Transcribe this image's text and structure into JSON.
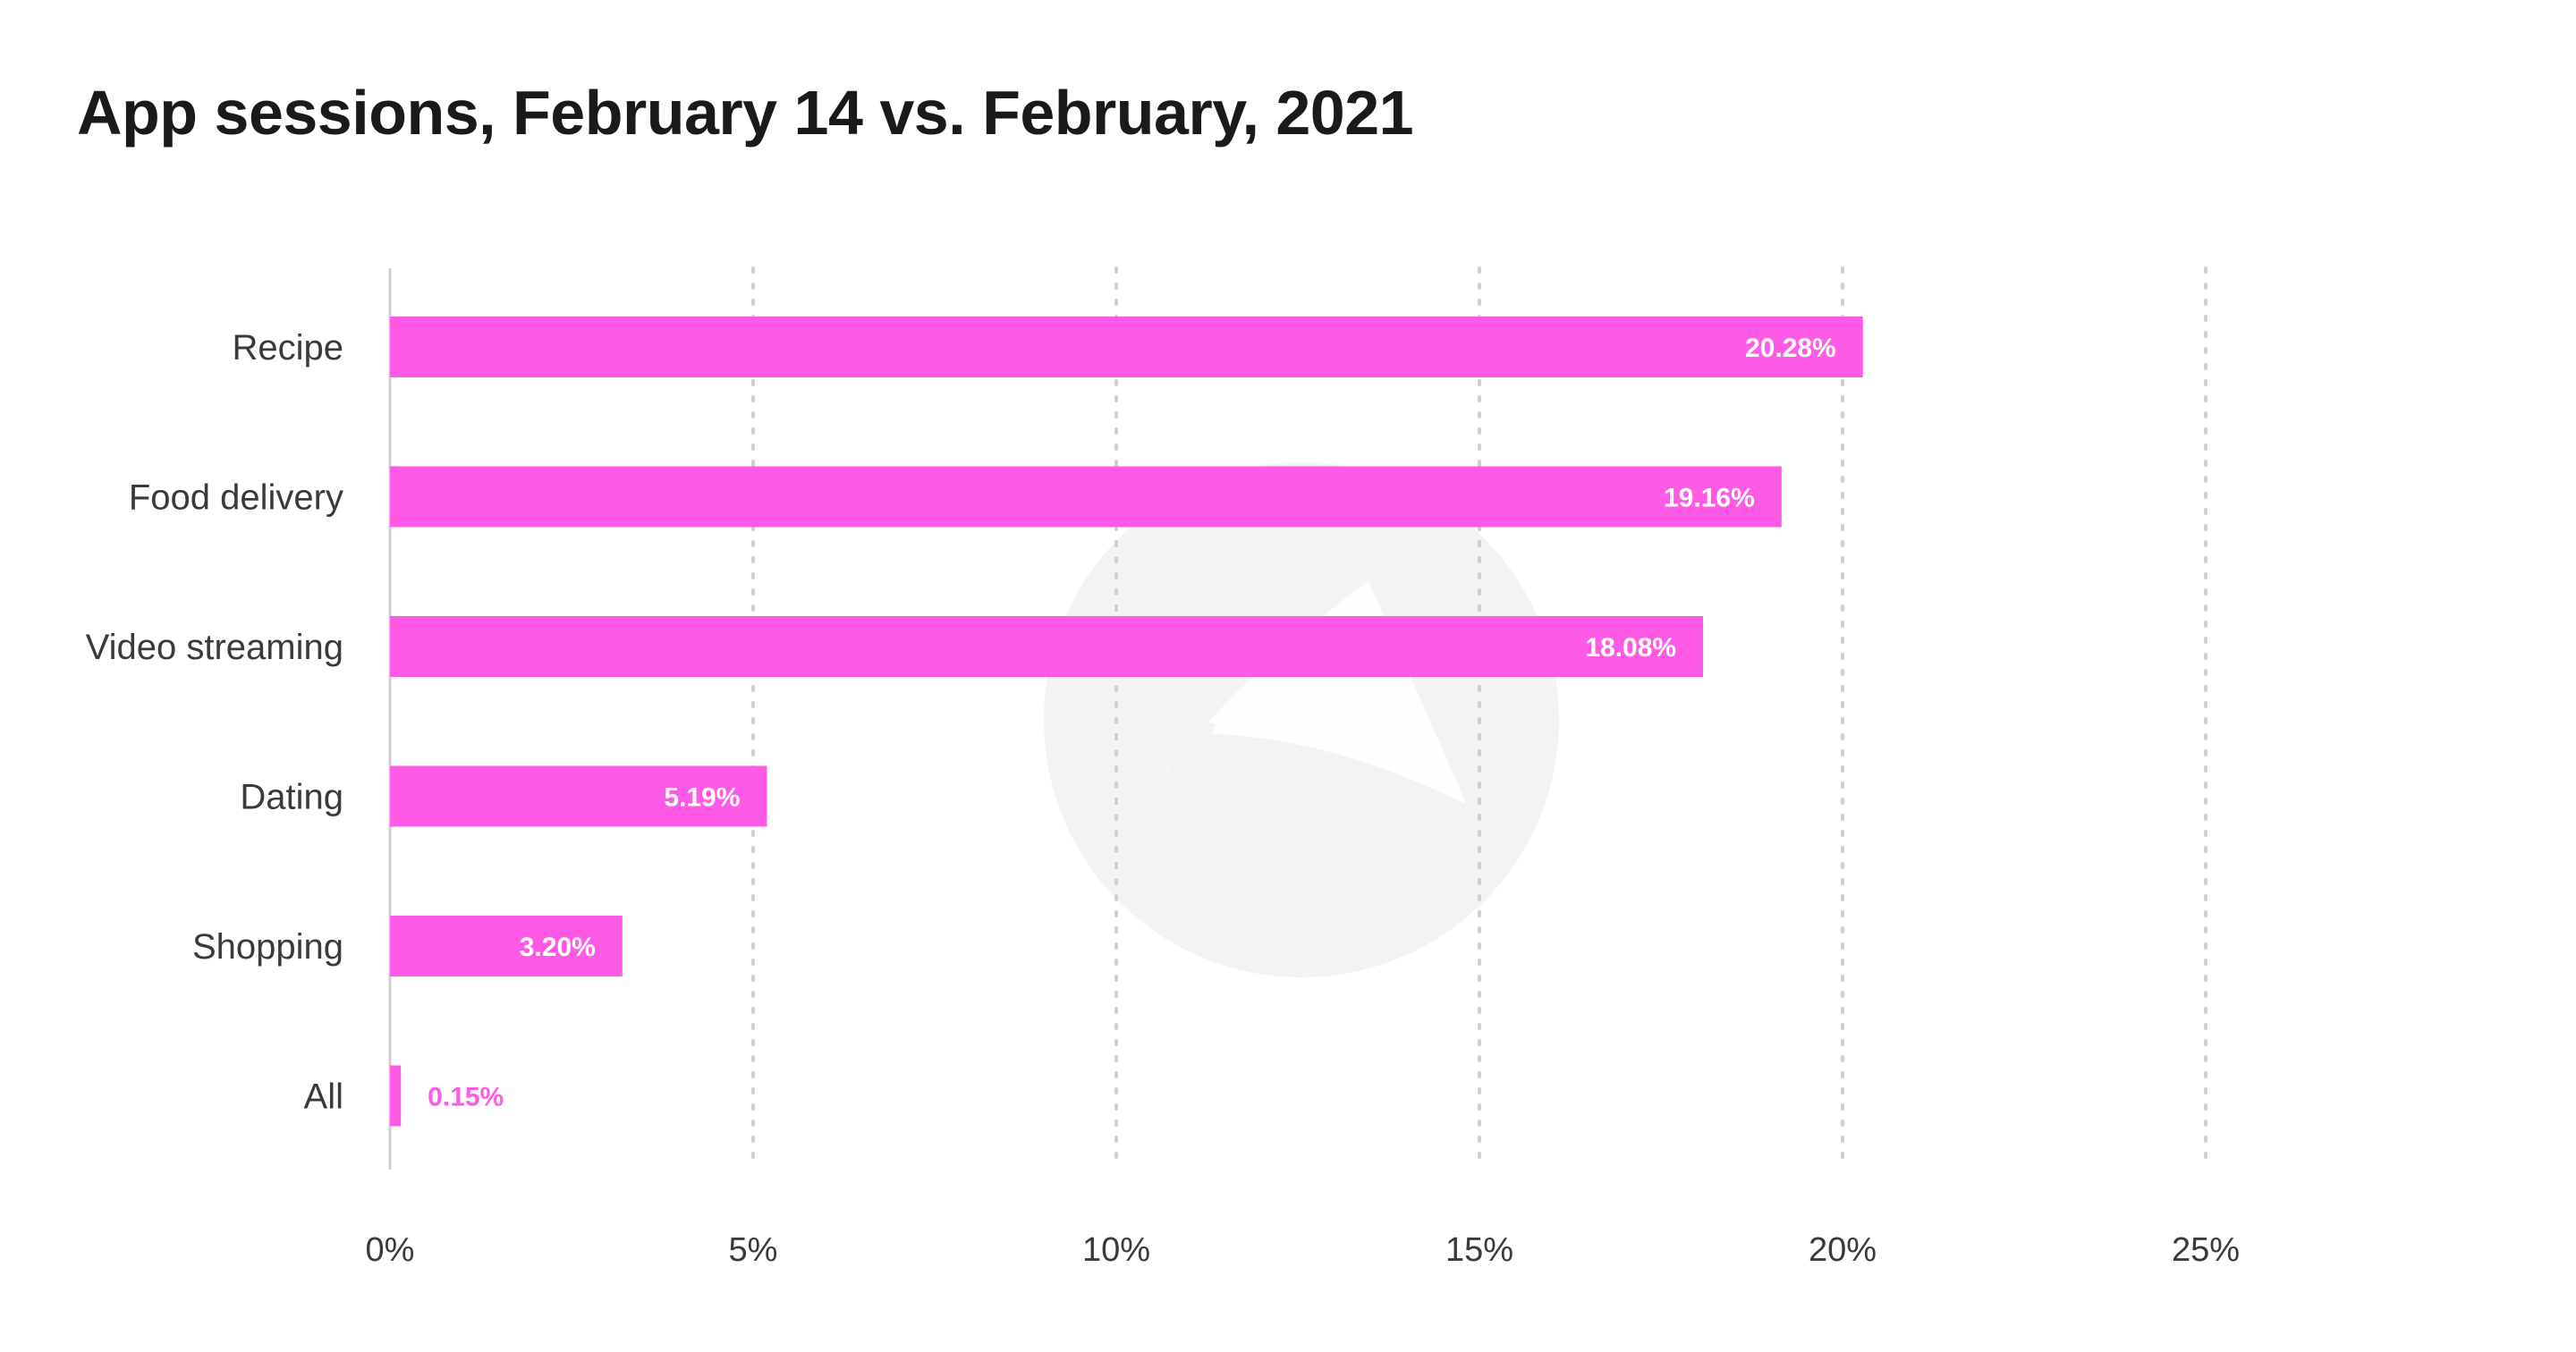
{
  "chart_data": {
    "type": "bar",
    "orientation": "horizontal",
    "title": "App sessions, February 14 vs. February, 2021",
    "categories": [
      "Recipe",
      "Food delivery",
      "Video streaming",
      "Dating",
      "Shopping",
      "All"
    ],
    "values": [
      20.28,
      19.16,
      18.08,
      5.19,
      3.2,
      0.15
    ],
    "value_labels": [
      "20.28%",
      "19.16%",
      "18.08%",
      "5.19%",
      "3.20%",
      "0.15%"
    ],
    "xlim": [
      0,
      25
    ],
    "xticks": [
      0,
      5,
      10,
      15,
      20,
      25
    ],
    "xtick_labels": [
      "0%",
      "5%",
      "10%",
      "15%",
      "20%",
      "25%"
    ],
    "grid": "vertical-dotted",
    "legend": "none",
    "bar_color": "#ff5ae6"
  }
}
